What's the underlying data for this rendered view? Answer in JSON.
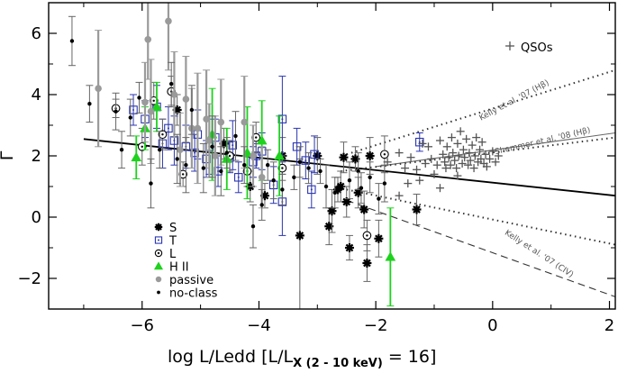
{
  "chart_data": {
    "type": "scatter",
    "xlabel_main": "log L/Ledd [L/L",
    "xlabel_sub": "X (2 - 10 keV)",
    "xlabel_tail": " = 16]",
    "ylabel": "Γ",
    "xlim": [
      -7.6,
      2.1
    ],
    "ylim": [
      -3,
      7
    ],
    "x_ticks": [
      -6,
      -4,
      -2,
      0,
      2
    ],
    "y_ticks": [
      -2,
      0,
      2,
      4,
      6
    ],
    "x_tick_labels": [
      "−6",
      "−4",
      "−2",
      "0",
      "2"
    ],
    "y_tick_labels": [
      "−2",
      "0",
      "2",
      "4",
      "6"
    ],
    "colors": {
      "blue": "#2a35b0",
      "green": "#1ed21e",
      "gray": "#9a9a9a",
      "black": "#000000",
      "darkgray": "#555555"
    },
    "fit_line": {
      "x": [
        -7.0,
        2.1
      ],
      "y": [
        2.55,
        0.7
      ]
    },
    "relations": [
      {
        "label": "Kelly et al. '07 (Hβ)",
        "style": "dotted",
        "x": [
          -2.5,
          2.1
        ],
        "y": [
          2.05,
          4.8
        ],
        "label_x": 0.1,
        "label_y": 3.25,
        "angle": 30
      },
      {
        "label": "Shemmer et al. '08 (Hβ)",
        "style": "solid",
        "x": [
          -2.0,
          2.1
        ],
        "y": [
          1.65,
          2.75
        ],
        "label_x": 0.1,
        "label_y": 2.15,
        "angle": 15
      },
      {
        "label": "Kelly et al. '07 (CIV)",
        "style": "dotted",
        "x": [
          -2.6,
          2.1
        ],
        "y": [
          1.5,
          2.6
        ],
        "label_x": -0.6,
        "label_y": 0.1,
        "angle": 0
      },
      {
        "label": "Kelly et al. '07 (CIV)",
        "style": "dashed",
        "x": [
          -2.5,
          2.1
        ],
        "y": [
          0.55,
          -2.6
        ],
        "label_x": 0.1,
        "label_y": 0.05,
        "angle": 34
      },
      {
        "label": "Kelly et al. '07 (CIV)",
        "style": "dotted",
        "x": [
          -2.5,
          2.1
        ],
        "y": [
          0.9,
          -0.9
        ],
        "label_x": 0.1,
        "label_y": 0.05,
        "angle": 34
      }
    ],
    "relation_labels": [
      {
        "text": "Kelly et al. '07 (Hβ)",
        "x": -0.2,
        "y": 3.15,
        "angle": -28
      },
      {
        "text": "Shemmer et al. '08 (Hβ)",
        "x": 0.05,
        "y": 2.05,
        "angle": -13
      },
      {
        "text": "Kelly et al. '07 (CIV)",
        "x": 0.2,
        "y": -0.55,
        "angle": 33
      }
    ],
    "qso_legend": {
      "label": "QSOs",
      "x": 0.25,
      "y": 5.6
    },
    "legend": [
      {
        "label": "S",
        "marker": "asterisk",
        "color": "#000000"
      },
      {
        "label": "T",
        "marker": "square",
        "color": "#2a35b0"
      },
      {
        "label": "L",
        "marker": "circle-dot",
        "color": "#000000"
      },
      {
        "label": "H II",
        "marker": "triangle",
        "color": "#1ed21e"
      },
      {
        "label": "passive",
        "marker": "big-dot",
        "color": "#9a9a9a"
      },
      {
        "label": "no-class",
        "marker": "small-dot",
        "color": "#000000"
      }
    ],
    "series": [
      {
        "name": "S",
        "marker": "asterisk",
        "color": "#000000",
        "points": [
          [
            -5.4,
            3.5,
            0.5
          ],
          [
            -4.6,
            2.4,
            0.5
          ],
          [
            -4.15,
            1.0,
            0.5
          ],
          [
            -3.9,
            0.7,
            0.4
          ],
          [
            -3.6,
            2.0,
            0.6
          ],
          [
            -3.3,
            -0.6,
            2.5
          ],
          [
            -3.0,
            2.0,
            0.6
          ],
          [
            -2.8,
            -0.3,
            0.6
          ],
          [
            -2.75,
            0.2,
            0.7
          ],
          [
            -2.65,
            0.9,
            0.4
          ],
          [
            -2.6,
            1.0,
            0.5
          ],
          [
            -2.55,
            1.95,
            0.5
          ],
          [
            -2.5,
            0.5,
            0.5
          ],
          [
            -2.35,
            1.9,
            0.4
          ],
          [
            -2.3,
            0.8,
            0.5
          ],
          [
            -2.2,
            0.25,
            0.6
          ],
          [
            -2.15,
            -1.5,
            0.6
          ],
          [
            -2.1,
            2.0,
            0.6
          ],
          [
            -1.95,
            -0.7,
            0.6
          ],
          [
            -1.3,
            0.25,
            0.5
          ],
          [
            -2.45,
            -1.0,
            0.4
          ]
        ]
      },
      {
        "name": "T",
        "marker": "square",
        "color": "#2a35b0",
        "points": [
          [
            -6.15,
            3.5,
            0.5
          ],
          [
            -5.95,
            3.2,
            0.6
          ],
          [
            -5.75,
            3.6,
            0.7
          ],
          [
            -5.65,
            2.4,
            0.8
          ],
          [
            -5.55,
            2.9,
            0.7
          ],
          [
            -5.45,
            2.5,
            0.8
          ],
          [
            -5.25,
            2.3,
            0.7
          ],
          [
            -5.1,
            2.1,
            0.6
          ],
          [
            -5.05,
            2.7,
            0.8
          ],
          [
            -4.9,
            1.9,
            0.6
          ],
          [
            -4.85,
            2.3,
            0.9
          ],
          [
            -4.75,
            2.6,
            0.6
          ],
          [
            -4.7,
            1.5,
            0.5
          ],
          [
            -4.5,
            1.95,
            0.5
          ],
          [
            -4.45,
            2.35,
            0.8
          ],
          [
            -4.35,
            1.3,
            0.5
          ],
          [
            -4.1,
            1.8,
            0.5
          ],
          [
            -4.05,
            2.0,
            0.4
          ],
          [
            -3.95,
            2.15,
            0.6
          ],
          [
            -3.75,
            1.05,
            0.6
          ],
          [
            -3.6,
            0.5,
            1.1
          ],
          [
            -3.6,
            3.2,
            1.4
          ],
          [
            -3.35,
            2.3,
            0.6
          ],
          [
            -3.2,
            1.85,
            0.6
          ],
          [
            -3.1,
            0.9,
            0.6
          ],
          [
            -3.05,
            2.05,
            0.6
          ],
          [
            -1.25,
            2.45,
            0.3
          ]
        ]
      },
      {
        "name": "L",
        "marker": "circle-dot",
        "color": "#000000",
        "points": [
          [
            -6.45,
            3.55,
            0.3
          ],
          [
            -6.0,
            2.3,
            0.6
          ],
          [
            -5.8,
            3.8,
            0.6
          ],
          [
            -5.65,
            2.7,
            0.5
          ],
          [
            -5.5,
            4.1,
            0.5
          ],
          [
            -5.3,
            1.4,
            0.4
          ],
          [
            -4.5,
            2.0,
            0.5
          ],
          [
            -4.2,
            1.5,
            0.5
          ],
          [
            -4.05,
            2.6,
            0.5
          ],
          [
            -3.6,
            1.6,
            0.4
          ],
          [
            -2.15,
            -0.6,
            0.5
          ],
          [
            -1.85,
            2.05,
            0.6
          ]
        ]
      },
      {
        "name": "H II",
        "marker": "triangle",
        "color": "#1ed21e",
        "points": [
          [
            -6.1,
            1.95,
            0.7
          ],
          [
            -5.95,
            2.9,
            0.7
          ],
          [
            -5.75,
            3.6,
            0.8
          ],
          [
            -4.8,
            2.7,
            1.5
          ],
          [
            -4.55,
            1.9,
            1.0
          ],
          [
            -4.2,
            2.1,
            1.5
          ],
          [
            -3.95,
            2.5,
            1.3
          ],
          [
            -3.65,
            2.0,
            1.3
          ],
          [
            -1.75,
            -1.3,
            1.6
          ]
        ]
      },
      {
        "name": "passive",
        "marker": "big-dot",
        "color": "#9a9a9a",
        "points": [
          [
            -6.75,
            4.2,
            1.9
          ],
          [
            -5.95,
            3.75,
            1.3
          ],
          [
            -5.85,
            3.45,
            1.7
          ],
          [
            -5.55,
            6.4,
            1.6
          ],
          [
            -5.45,
            4.0,
            1.4
          ],
          [
            -5.35,
            2.2,
            1.2
          ],
          [
            -5.25,
            3.85,
            1.4
          ],
          [
            -5.15,
            2.9,
            1.3
          ],
          [
            -5.05,
            2.9,
            1.8
          ],
          [
            -4.9,
            3.2,
            1.6
          ],
          [
            -4.85,
            2.5,
            1.2
          ],
          [
            -4.75,
            2.0,
            1.3
          ],
          [
            -4.65,
            3.1,
            1.4
          ],
          [
            -4.25,
            3.1,
            1.5
          ],
          [
            -4.1,
            2.0,
            1.0
          ],
          [
            -3.95,
            1.3,
            1.0
          ],
          [
            -5.9,
            5.8,
            1.3
          ]
        ]
      },
      {
        "name": "no-class",
        "marker": "small-dot",
        "color": "#000000",
        "points": [
          [
            -7.2,
            5.75,
            0.8
          ],
          [
            -6.9,
            3.7,
            0.6
          ],
          [
            -6.45,
            3.45,
            0.6
          ],
          [
            -6.35,
            2.2,
            0.6
          ],
          [
            -6.2,
            3.25,
            0.6
          ],
          [
            -6.05,
            3.9,
            0.5
          ],
          [
            -5.85,
            1.1,
            0.8
          ],
          [
            -5.7,
            2.2,
            0.6
          ],
          [
            -5.5,
            4.35,
            0.7
          ],
          [
            -5.4,
            1.9,
            0.8
          ],
          [
            -5.25,
            1.7,
            0.9
          ],
          [
            -5.15,
            3.5,
            0.8
          ],
          [
            -4.95,
            1.6,
            0.8
          ],
          [
            -4.8,
            2.3,
            1.0
          ],
          [
            -4.65,
            1.5,
            0.8
          ],
          [
            -4.55,
            2.1,
            0.5
          ],
          [
            -4.4,
            2.65,
            0.8
          ],
          [
            -4.25,
            1.7,
            0.6
          ],
          [
            -4.1,
            -0.3,
            0.7
          ],
          [
            -3.95,
            0.4,
            0.5
          ],
          [
            -3.85,
            1.7,
            0.5
          ],
          [
            -3.75,
            1.2,
            0.6
          ],
          [
            -3.6,
            0.9,
            0.5
          ],
          [
            -3.4,
            1.3,
            0.4
          ],
          [
            -3.3,
            1.8,
            0.5
          ],
          [
            -3.15,
            1.6,
            0.5
          ],
          [
            -2.95,
            1.5,
            0.4
          ],
          [
            -2.85,
            1.0,
            0.7
          ],
          [
            -2.7,
            0.8,
            0.5
          ],
          [
            -2.45,
            1.2,
            0.6
          ],
          [
            -2.3,
            1.5,
            0.6
          ],
          [
            -2.25,
            0.95,
            0.5
          ],
          [
            -2.1,
            1.3,
            0.5
          ],
          [
            -1.95,
            0.6,
            0.5
          ],
          [
            -1.85,
            1.1,
            0.6
          ]
        ]
      },
      {
        "name": "QSOs",
        "marker": "plus",
        "color": "#555555",
        "points": [
          [
            -1.8,
            1.8,
            0
          ],
          [
            -1.6,
            0.7,
            0
          ],
          [
            -1.5,
            1.6,
            0
          ],
          [
            -1.45,
            1.1,
            0
          ],
          [
            -1.4,
            1.95,
            0
          ],
          [
            -1.3,
            1.55,
            0
          ],
          [
            -1.25,
            1.2,
            0
          ],
          [
            -1.2,
            2.4,
            0
          ],
          [
            -1.15,
            1.75,
            0
          ],
          [
            -1.1,
            2.3,
            0
          ],
          [
            -1.05,
            1.9,
            0
          ],
          [
            -1.0,
            1.4,
            0
          ],
          [
            -0.95,
            1.7,
            0
          ],
          [
            -0.9,
            2.5,
            0
          ],
          [
            -0.85,
            2.05,
            0
          ],
          [
            -0.82,
            1.8,
            0
          ],
          [
            -0.8,
            1.6,
            0
          ],
          [
            -0.78,
            2.3,
            0
          ],
          [
            -0.75,
            1.95,
            0
          ],
          [
            -0.72,
            1.7,
            0
          ],
          [
            -0.7,
            2.6,
            0
          ],
          [
            -0.68,
            2.1,
            0
          ],
          [
            -0.65,
            1.85,
            0
          ],
          [
            -0.62,
            1.6,
            0
          ],
          [
            -0.6,
            2.4,
            0
          ],
          [
            -0.58,
            2.0,
            0
          ],
          [
            -0.55,
            2.8,
            0
          ],
          [
            -0.52,
            1.75,
            0
          ],
          [
            -0.5,
            2.2,
            0
          ],
          [
            -0.48,
            1.95,
            0
          ],
          [
            -0.45,
            2.55,
            0
          ],
          [
            -0.42,
            1.7,
            0
          ],
          [
            -0.4,
            2.1,
            0
          ],
          [
            -0.38,
            1.85,
            0
          ],
          [
            -0.35,
            2.35,
            0
          ],
          [
            -0.32,
            1.6,
            0
          ],
          [
            -0.3,
            2.0,
            0
          ],
          [
            -0.28,
            2.6,
            0
          ],
          [
            -0.25,
            1.8,
            0
          ],
          [
            -0.22,
            2.2,
            0
          ],
          [
            -0.2,
            1.9,
            0
          ],
          [
            -0.18,
            2.45,
            0
          ],
          [
            -0.15,
            1.75,
            0
          ],
          [
            -0.12,
            2.05,
            0
          ],
          [
            -0.1,
            1.65,
            0
          ],
          [
            -0.05,
            1.9,
            0
          ],
          [
            0.0,
            2.15,
            0
          ],
          [
            0.05,
            1.8,
            0
          ],
          [
            0.1,
            2.0,
            0
          ],
          [
            -0.9,
            0.95,
            0
          ],
          [
            -1.6,
            2.1,
            0
          ],
          [
            -0.6,
            1.35,
            0
          ]
        ]
      }
    ]
  }
}
